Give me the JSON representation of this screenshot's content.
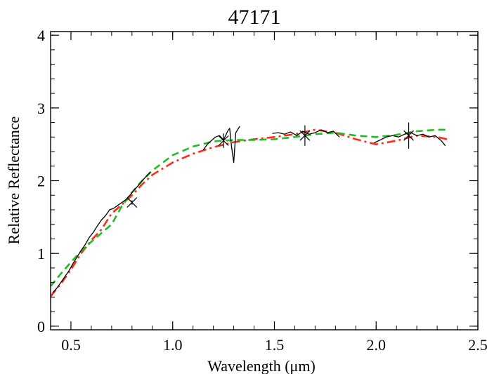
{
  "chart_data": {
    "type": "line",
    "title": "47171",
    "xlabel": "Wavelength  (μm)",
    "ylabel": "Relative Reflectance",
    "xlim": [
      0.4,
      2.5
    ],
    "ylim": [
      -0.05,
      4.05
    ],
    "x_ticks": [
      0.5,
      1.0,
      1.5,
      2.0,
      2.5
    ],
    "x_tick_labels": [
      "0.5",
      "1.0",
      "1.5",
      "2.0",
      "2.5"
    ],
    "y_ticks": [
      0,
      1,
      2,
      3,
      4
    ],
    "y_tick_labels": [
      "0",
      "1",
      "2",
      "3",
      "4"
    ],
    "grid": false,
    "series": [
      {
        "kind": "observed-spectrum",
        "color": "#000000",
        "style": "solid",
        "x": [
          0.41,
          0.43,
          0.45,
          0.47,
          0.49,
          0.51,
          0.53,
          0.55,
          0.57,
          0.59,
          0.61,
          0.63,
          0.65,
          0.67,
          0.69,
          0.71,
          0.73,
          0.75,
          0.77,
          0.79,
          0.81,
          0.83,
          0.85,
          0.87,
          0.89,
          1.15,
          1.17,
          1.19,
          1.21,
          1.23,
          1.25,
          1.27,
          1.28,
          1.29,
          1.3,
          1.31,
          1.33,
          1.49,
          1.52,
          1.55,
          1.58,
          1.61,
          1.64,
          1.67,
          1.7,
          1.73,
          1.76,
          1.79,
          1.82,
          1.99,
          2.02,
          2.05,
          2.08,
          2.11,
          2.14,
          2.17,
          2.2,
          2.23,
          2.26,
          2.29,
          2.32,
          2.34
        ],
        "y": [
          0.46,
          0.52,
          0.6,
          0.68,
          0.76,
          0.86,
          0.95,
          1.04,
          1.12,
          1.22,
          1.29,
          1.38,
          1.46,
          1.52,
          1.6,
          1.62,
          1.66,
          1.7,
          1.74,
          1.8,
          1.87,
          1.93,
          2.0,
          2.06,
          2.12,
          2.42,
          2.5,
          2.55,
          2.6,
          2.62,
          2.56,
          2.68,
          2.72,
          2.45,
          2.25,
          2.66,
          2.75,
          2.65,
          2.66,
          2.64,
          2.67,
          2.62,
          2.68,
          2.64,
          2.66,
          2.7,
          2.66,
          2.68,
          2.6,
          2.52,
          2.56,
          2.6,
          2.62,
          2.6,
          2.64,
          2.66,
          2.62,
          2.64,
          2.6,
          2.62,
          2.55,
          2.48
        ]
      },
      {
        "kind": "model-fit",
        "color": "#ff2a1a",
        "style": "dash-dot",
        "x": [
          0.4,
          0.45,
          0.5,
          0.55,
          0.6,
          0.65,
          0.7,
          0.75,
          0.8,
          0.85,
          0.9,
          1.0,
          1.1,
          1.2,
          1.3,
          1.4,
          1.5,
          1.6,
          1.7,
          1.8,
          1.9,
          2.0,
          2.1,
          2.2,
          2.3,
          2.35
        ],
        "y": [
          0.41,
          0.58,
          0.78,
          1.0,
          1.18,
          1.33,
          1.55,
          1.67,
          1.8,
          1.95,
          2.08,
          2.25,
          2.37,
          2.46,
          2.53,
          2.57,
          2.6,
          2.64,
          2.7,
          2.66,
          2.57,
          2.5,
          2.55,
          2.62,
          2.6,
          2.57
        ]
      },
      {
        "kind": "model-fit",
        "color": "#22bb22",
        "style": "dashed",
        "x": [
          0.4,
          0.45,
          0.5,
          0.55,
          0.6,
          0.65,
          0.7,
          0.75,
          0.8,
          0.85,
          0.9,
          1.0,
          1.1,
          1.2,
          1.3,
          1.4,
          1.5,
          1.6,
          1.7,
          1.8,
          1.9,
          2.0,
          2.1,
          2.2,
          2.3,
          2.35
        ],
        "y": [
          0.55,
          0.72,
          0.88,
          1.03,
          1.16,
          1.28,
          1.4,
          1.65,
          1.84,
          2.0,
          2.14,
          2.35,
          2.47,
          2.54,
          2.56,
          2.56,
          2.57,
          2.6,
          2.64,
          2.66,
          2.62,
          2.6,
          2.63,
          2.68,
          2.7,
          2.7
        ]
      }
    ],
    "points": {
      "color": "#000000",
      "marker": "cross",
      "x": [
        0.8,
        1.25,
        1.65,
        2.16
      ],
      "y": [
        1.7,
        2.55,
        2.62,
        2.62
      ],
      "yerr": [
        0.03,
        0.1,
        0.14,
        0.18
      ]
    }
  }
}
